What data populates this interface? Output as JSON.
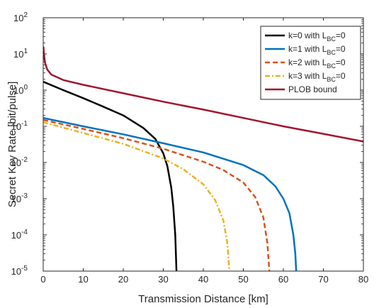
{
  "chart_data": {
    "type": "line",
    "xlabel": "Transmission Distance [km]",
    "ylabel": "Secret Key Rate [bit/pulse]",
    "xlim": [
      0,
      80
    ],
    "ylim": [
      1e-05,
      100
    ],
    "yscale": "log",
    "grid": false,
    "legend_position": "top-right",
    "x_ticks": [
      "0",
      "10",
      "20",
      "30",
      "40",
      "50",
      "60",
      "70",
      "80"
    ],
    "y_ticks": [
      {
        "base": "10",
        "exp": "-5"
      },
      {
        "base": "10",
        "exp": "-4"
      },
      {
        "base": "10",
        "exp": "-3"
      },
      {
        "base": "10",
        "exp": "-2"
      },
      {
        "base": "10",
        "exp": "-1"
      },
      {
        "base": "10",
        "exp": "0"
      },
      {
        "base": "10",
        "exp": "1"
      },
      {
        "base": "10",
        "exp": "2"
      }
    ],
    "series": [
      {
        "name": "k=0 with L_BC=0",
        "label_main": "k=0 with L",
        "label_sub": "BC",
        "label_tail": "=0",
        "color": "#000000",
        "dash": "solid",
        "x": [
          0,
          5,
          10,
          15,
          20,
          25,
          28,
          30,
          31,
          32,
          32.5,
          33,
          33.3
        ],
        "y": [
          1.7,
          1.0,
          0.6,
          0.35,
          0.2,
          0.09,
          0.045,
          0.018,
          0.008,
          0.002,
          0.0006,
          0.0001,
          1e-05
        ]
      },
      {
        "name": "k=1 with L_BC=0",
        "label_main": "k=1 with L",
        "label_sub": "BC",
        "label_tail": "=0",
        "color": "#0072BD",
        "dash": "solid",
        "x": [
          0,
          10,
          20,
          30,
          40,
          50,
          55,
          58,
          60,
          61.5,
          62.5,
          63,
          63.2
        ],
        "y": [
          0.17,
          0.1,
          0.06,
          0.034,
          0.019,
          0.0085,
          0.0045,
          0.0022,
          0.001,
          0.0004,
          0.0001,
          3e-05,
          1e-05
        ]
      },
      {
        "name": "k=2 with L_BC=0",
        "label_main": "k=2 with L",
        "label_sub": "BC",
        "label_tail": "=0",
        "color": "#D95319",
        "dash": "dashed",
        "x": [
          0,
          10,
          20,
          30,
          40,
          45,
          50,
          53,
          55,
          56,
          56.5
        ],
        "y": [
          0.15,
          0.085,
          0.047,
          0.024,
          0.0105,
          0.0062,
          0.0028,
          0.0011,
          0.0003,
          6e-05,
          1e-05
        ]
      },
      {
        "name": "k=3 with L_BC=0",
        "label_main": "k=3 with L",
        "label_sub": "BC",
        "label_tail": "=0",
        "color": "#EDB120",
        "dash": "dashdot",
        "x": [
          0,
          10,
          20,
          30,
          35,
          40,
          43,
          45,
          46,
          46.5
        ],
        "y": [
          0.13,
          0.065,
          0.033,
          0.013,
          0.0065,
          0.0025,
          0.0009,
          0.00025,
          6e-05,
          1e-05
        ]
      },
      {
        "name": "PLOB bound",
        "label_main": "PLOB bound",
        "label_sub": "",
        "label_tail": "",
        "color": "#A2142F",
        "dash": "solid",
        "x": [
          0.05,
          0.2,
          0.5,
          1,
          2,
          5,
          10,
          20,
          30,
          40,
          50,
          60,
          70,
          80
        ],
        "y": [
          16,
          9,
          5.5,
          3.7,
          2.7,
          1.9,
          1.4,
          0.82,
          0.48,
          0.29,
          0.17,
          0.1,
          0.062,
          0.038
        ]
      }
    ]
  }
}
